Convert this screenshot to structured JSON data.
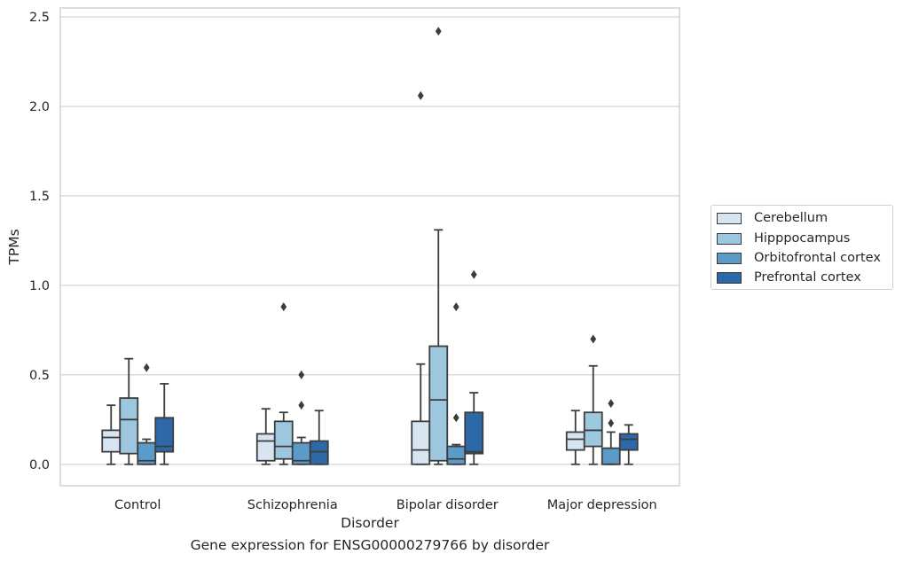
{
  "caption": "Gene expression for ENSG00000279766 by disorder",
  "chart_data": {
    "type": "box",
    "xlabel": "Disorder",
    "ylabel": "TPMs",
    "ylim": [
      -0.12,
      2.55
    ],
    "yticks": [
      "0.0",
      "0.5",
      "1.0",
      "1.5",
      "2.0",
      "2.5"
    ],
    "ytick_values": [
      0,
      0.5,
      1.0,
      1.5,
      2.0,
      2.5
    ],
    "grid": "horizontal",
    "legend_position": "outside-right",
    "categories": [
      "Control",
      "Schizophrenia",
      "Bipolar disorder",
      "Major depression"
    ],
    "series": [
      {
        "name": "Cerebellum",
        "color": "#d7e5f3",
        "boxes": [
          {
            "min": 0.0,
            "q1": 0.07,
            "median": 0.15,
            "q3": 0.19,
            "max": 0.33,
            "outliers": []
          },
          {
            "min": 0.0,
            "q1": 0.02,
            "median": 0.13,
            "q3": 0.17,
            "max": 0.31,
            "outliers": []
          },
          {
            "min": 0.0,
            "q1": 0.0,
            "median": 0.08,
            "q3": 0.24,
            "max": 0.56,
            "outliers": [
              2.06
            ]
          },
          {
            "min": 0.0,
            "q1": 0.08,
            "median": 0.14,
            "q3": 0.18,
            "max": 0.3,
            "outliers": []
          }
        ]
      },
      {
        "name": "Hipppocampus",
        "color": "#9dc7df",
        "boxes": [
          {
            "min": 0.0,
            "q1": 0.06,
            "median": 0.25,
            "q3": 0.37,
            "max": 0.59,
            "outliers": []
          },
          {
            "min": 0.0,
            "q1": 0.03,
            "median": 0.1,
            "q3": 0.24,
            "max": 0.29,
            "outliers": [
              0.88
            ]
          },
          {
            "min": 0.0,
            "q1": 0.02,
            "median": 0.36,
            "q3": 0.66,
            "max": 1.31,
            "outliers": [
              2.42
            ]
          },
          {
            "min": 0.0,
            "q1": 0.1,
            "median": 0.19,
            "q3": 0.29,
            "max": 0.55,
            "outliers": [
              0.7
            ]
          }
        ]
      },
      {
        "name": "Orbitofrontal cortex",
        "color": "#5a9bc8",
        "boxes": [
          {
            "min": 0.0,
            "q1": 0.0,
            "median": 0.02,
            "q3": 0.12,
            "max": 0.14,
            "outliers": [
              0.54
            ]
          },
          {
            "min": 0.0,
            "q1": 0.0,
            "median": 0.02,
            "q3": 0.12,
            "max": 0.15,
            "outliers": [
              0.5,
              0.33
            ]
          },
          {
            "min": 0.0,
            "q1": 0.0,
            "median": 0.03,
            "q3": 0.1,
            "max": 0.11,
            "outliers": [
              0.88,
              0.26
            ]
          },
          {
            "min": 0.0,
            "q1": 0.0,
            "median": 0.0,
            "q3": 0.09,
            "max": 0.18,
            "outliers": [
              0.34,
              0.23
            ]
          }
        ]
      },
      {
        "name": "Prefrontal cortex",
        "color": "#2d69a8",
        "boxes": [
          {
            "min": 0.0,
            "q1": 0.07,
            "median": 0.1,
            "q3": 0.26,
            "max": 0.45,
            "outliers": []
          },
          {
            "min": 0.0,
            "q1": 0.0,
            "median": 0.07,
            "q3": 0.13,
            "max": 0.3,
            "outliers": []
          },
          {
            "min": 0.0,
            "q1": 0.06,
            "median": 0.07,
            "q3": 0.29,
            "max": 0.4,
            "outliers": [
              1.06
            ]
          },
          {
            "min": 0.0,
            "q1": 0.08,
            "median": 0.14,
            "q3": 0.17,
            "max": 0.22,
            "outliers": []
          }
        ]
      }
    ]
  }
}
